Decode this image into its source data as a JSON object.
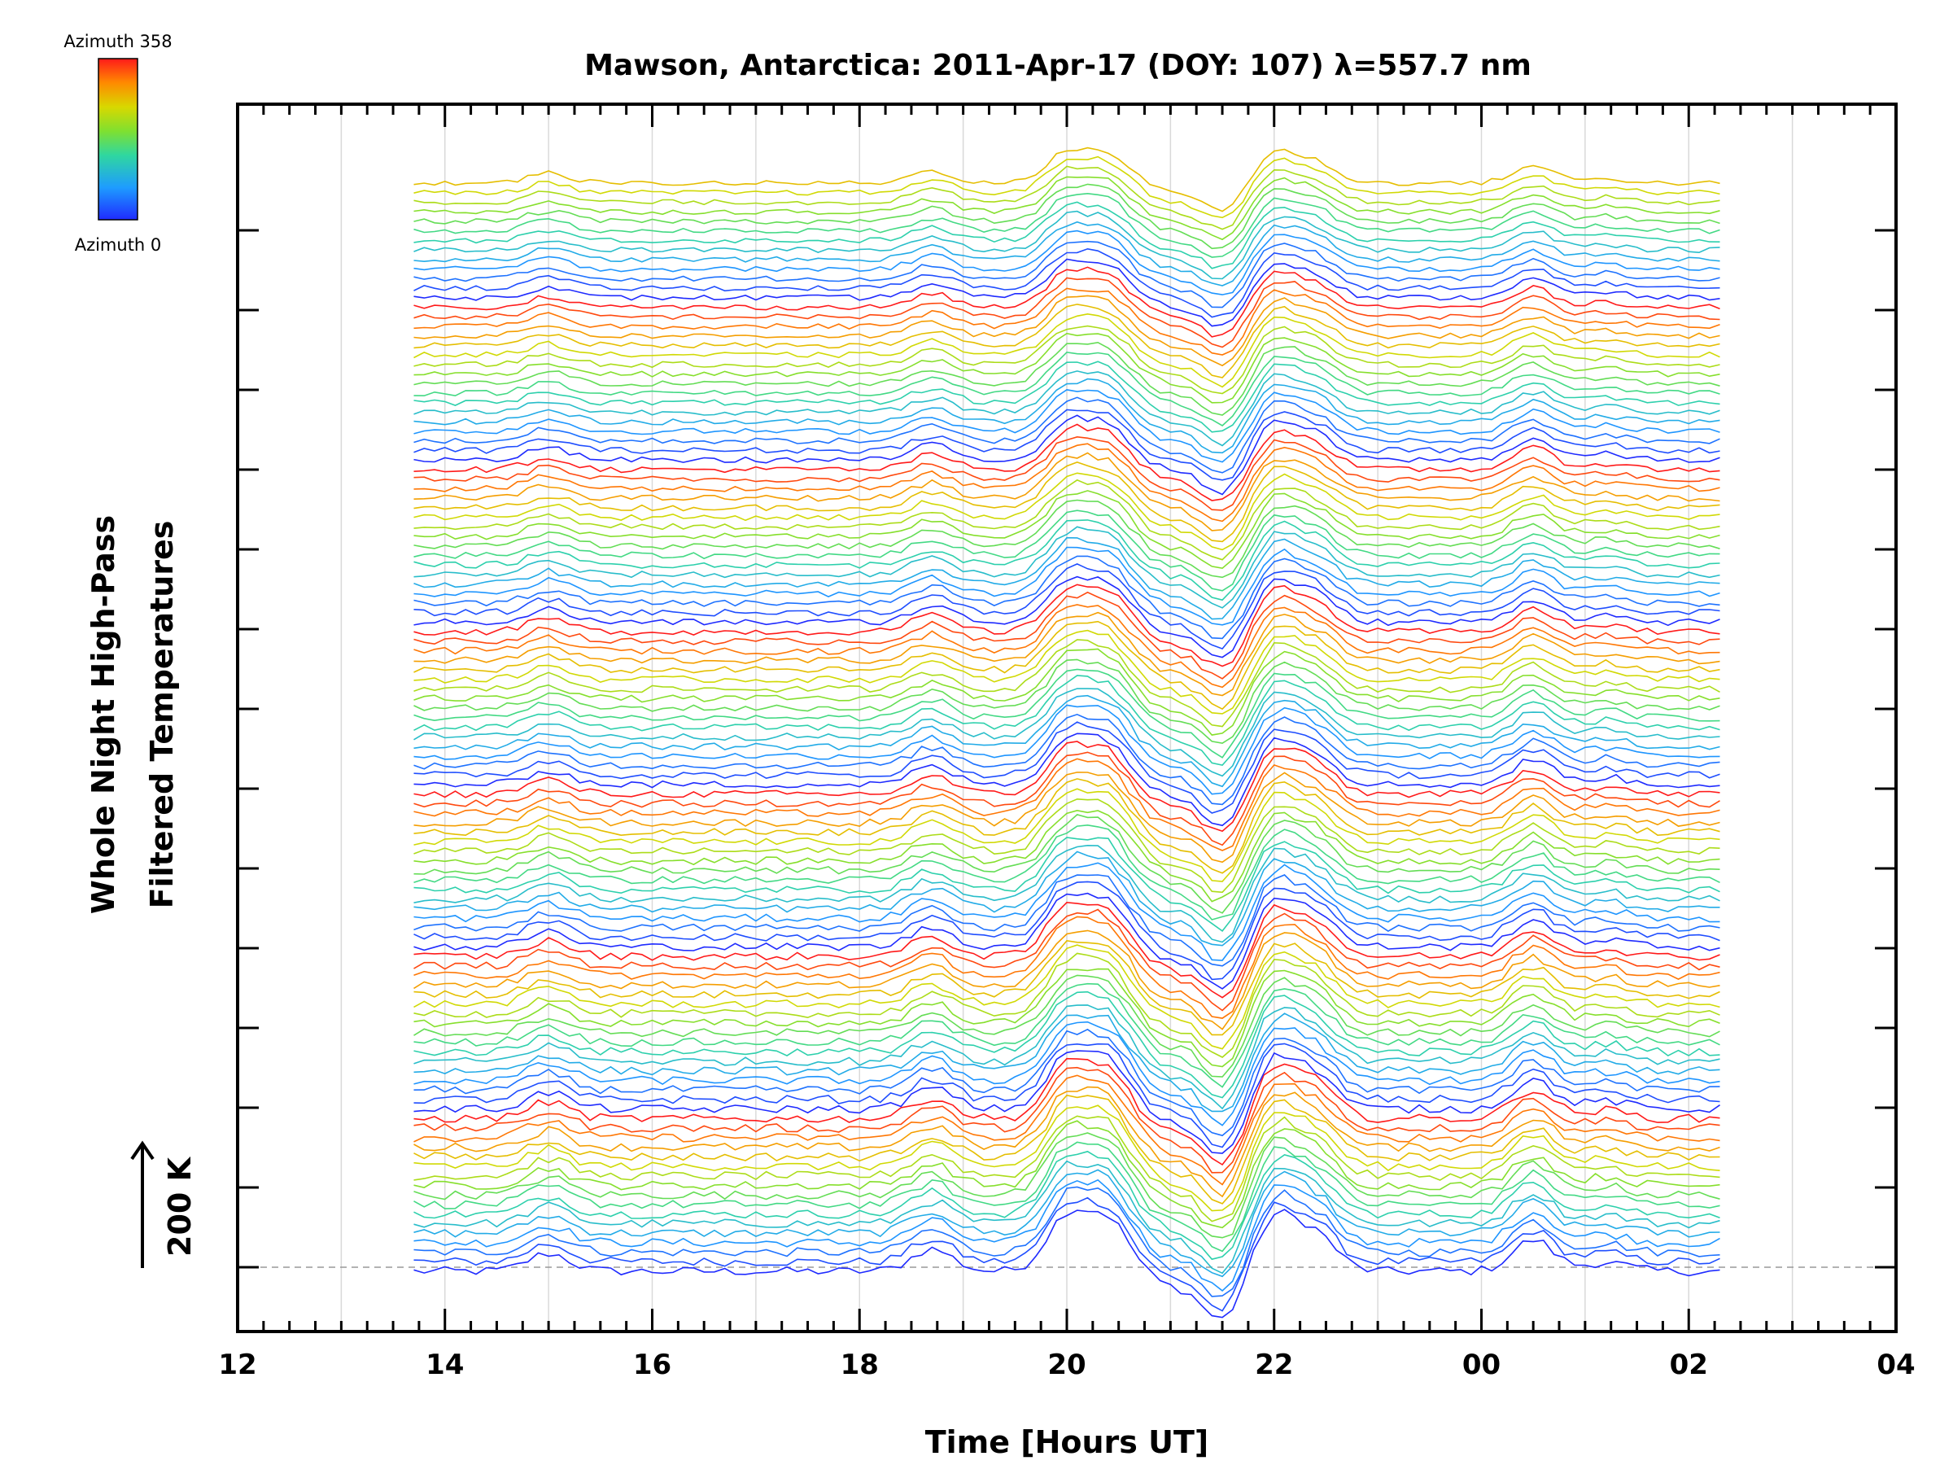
{
  "chart_data": {
    "type": "line",
    "title": "Mawson, Antarctica: 2011-Apr-17 (DOY: 107) λ=557.7 nm",
    "xlabel": "Time [Hours UT]",
    "ylabel_line1": "Whole Night High-Pass",
    "ylabel_line2": "Filtered Temperatures",
    "scale_label": "200 K",
    "colorbar": {
      "top_label": "Azimuth 358",
      "bottom_label": "Azimuth 0"
    },
    "x_range_hours": [
      12,
      28
    ],
    "x_tick_labels": [
      "12",
      "14",
      "16",
      "18",
      "20",
      "22",
      "00",
      "02",
      "04"
    ],
    "x_tick_hours": [
      12,
      14,
      16,
      18,
      20,
      22,
      24,
      26,
      28
    ],
    "data_time_range_hours": [
      13.7,
      26.3
    ],
    "y_labeled_ticks": 14,
    "grid": "vertical, every hour",
    "n_traces": 115,
    "trace_offset_note": "traces stacked upward; azimuth increases within each group (blue→red)",
    "trace_groups": 7,
    "features": [
      {
        "time_hours": 15.0,
        "amplitude_k": 20
      },
      {
        "time_hours": 18.7,
        "amplitude_k": 25
      },
      {
        "time_hours": 20.0,
        "amplitude_k": 60
      },
      {
        "time_hours": 20.4,
        "amplitude_k": 55
      },
      {
        "time_hours": 21.0,
        "amplitude_k": -15
      },
      {
        "time_hours": 21.5,
        "amplitude_k": -55
      },
      {
        "time_hours": 22.0,
        "amplitude_k": 60
      },
      {
        "time_hours": 22.4,
        "amplitude_k": 40
      },
      {
        "time_hours": 24.5,
        "amplitude_k": 35
      },
      {
        "time_hours": 25.2,
        "amplitude_k": 10
      }
    ],
    "colors": {
      "azimuth_0": "#1030ff",
      "azimuth_358": "#ff1a1a"
    }
  }
}
